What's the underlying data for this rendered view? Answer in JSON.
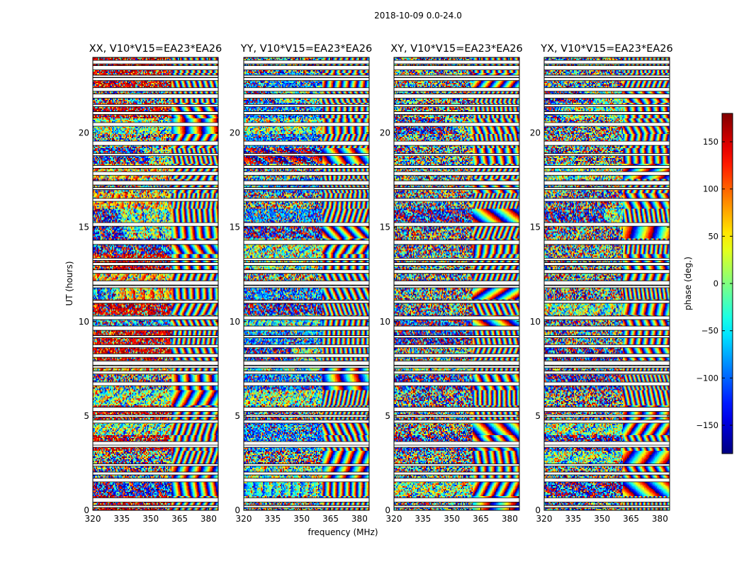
{
  "chart_data": {
    "type": "heatmap",
    "suptitle": "2018-10-09 0.0-24.0",
    "xlabel": "frequency (MHz)",
    "ylabel": "UT (hours)",
    "xlim": [
      320,
      385
    ],
    "ylim": [
      0,
      24
    ],
    "xticks": [
      320,
      335,
      350,
      365,
      380
    ],
    "yticks": [
      0,
      5,
      10,
      15,
      20
    ],
    "panels": [
      {
        "title": "XX, V10*V15=EA23*EA26",
        "style": "red"
      },
      {
        "title": "YY, V10*V15=EA23*EA26",
        "style": "blue"
      },
      {
        "title": "XY, V10*V15=EA23*EA26",
        "style": "noise"
      },
      {
        "title": "YX, V10*V15=EA23*EA26",
        "style": "noise"
      }
    ],
    "gaps_hours": [
      0.2,
      0.55,
      1.6,
      1.95,
      2.4,
      3.45,
      3.55,
      4.7,
      5.0,
      5.35,
      6.7,
      7.3,
      7.6,
      7.8,
      8.2,
      8.7,
      9.2,
      9.65,
      10.2,
      11.05,
      11.85,
      12.05,
      12.65,
      13.05,
      13.3,
      14.2,
      15.15,
      16.45,
      17.05,
      17.35,
      17.85,
      18.2,
      18.85,
      19.45,
      20.45,
      21.05,
      21.45,
      21.95,
      22.3,
      22.85,
      23.0,
      23.45,
      23.75
    ],
    "colorbar": {
      "label": "phase (deg.)",
      "range": [
        -180,
        180
      ],
      "ticks": [
        150,
        100,
        50,
        0,
        -50,
        -100,
        -150
      ],
      "tick_labels": [
        "150",
        "100",
        "50",
        "0",
        "−50",
        "−100",
        "−150"
      ],
      "colormap": "jet"
    }
  }
}
